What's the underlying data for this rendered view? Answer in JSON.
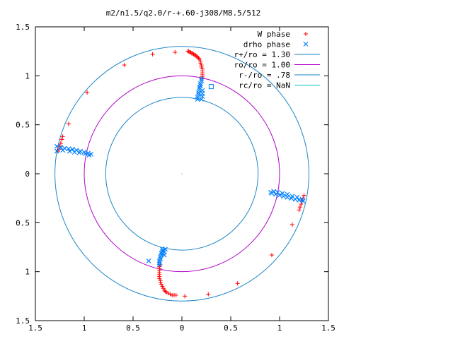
{
  "chart_data": {
    "type": "scatter",
    "title": "m2/n1.5/q2.0/r-+.60-j308/M8.5/512",
    "xlabel": "",
    "ylabel": "",
    "xlim": [
      -1.5,
      1.5
    ],
    "ylim": [
      -1.5,
      1.5
    ],
    "x_tick_values": [
      -1.5,
      -1,
      -0.5,
      0,
      0.5,
      1,
      1.5
    ],
    "x_tick_labels": [
      "1.5",
      "1",
      "0.5",
      "0",
      "0.5",
      "1",
      "1.5"
    ],
    "y_tick_values": [
      1.5,
      1,
      0.5,
      0,
      -0.5,
      -1,
      -1.5
    ],
    "y_tick_labels": [
      "1.5",
      "1",
      "0.5",
      "0",
      "0.5",
      "1",
      "1.5"
    ],
    "grid": false,
    "legend_position": "top-right",
    "series": [
      {
        "name": "W phase",
        "marker": "plus",
        "color": "#ff0000",
        "points": [
          [
            -1.27,
            0.23
          ],
          [
            -1.26,
            0.25
          ],
          [
            -1.25,
            0.28
          ],
          [
            -1.24,
            0.31
          ],
          [
            -1.23,
            0.35
          ],
          [
            -1.22,
            0.38
          ],
          [
            -1.16,
            0.51
          ],
          [
            -0.97,
            0.83
          ],
          [
            -0.59,
            1.11
          ],
          [
            -0.3,
            1.22
          ],
          [
            -0.07,
            1.24
          ],
          [
            0.06,
            1.25
          ],
          [
            0.07,
            1.25
          ],
          [
            0.08,
            1.24
          ],
          [
            0.09,
            1.24
          ],
          [
            0.1,
            1.23
          ],
          [
            0.11,
            1.23
          ],
          [
            0.12,
            1.22
          ],
          [
            0.13,
            1.21
          ],
          [
            0.14,
            1.21
          ],
          [
            0.15,
            1.2
          ],
          [
            0.16,
            1.19
          ],
          [
            0.17,
            1.18
          ],
          [
            0.18,
            1.17
          ],
          [
            0.19,
            1.15
          ],
          [
            0.19,
            1.13
          ],
          [
            0.2,
            1.11
          ],
          [
            0.2,
            1.09
          ],
          [
            0.21,
            1.07
          ],
          [
            0.21,
            1.05
          ],
          [
            0.21,
            1.03
          ],
          [
            0.21,
            1.01
          ],
          [
            0.21,
            0.99
          ],
          [
            0.21,
            0.97
          ],
          [
            1.25,
            -0.22
          ],
          [
            1.24,
            -0.25
          ],
          [
            1.23,
            -0.28
          ],
          [
            1.22,
            -0.31
          ],
          [
            1.21,
            -0.34
          ],
          [
            1.2,
            -0.37
          ],
          [
            1.13,
            -0.52
          ],
          [
            0.92,
            -0.83
          ],
          [
            0.57,
            -1.12
          ],
          [
            0.27,
            -1.23
          ],
          [
            0.03,
            -1.25
          ],
          [
            -0.06,
            -1.24
          ],
          [
            -0.08,
            -1.24
          ],
          [
            -0.1,
            -1.24
          ],
          [
            -0.12,
            -1.23
          ],
          [
            -0.14,
            -1.22
          ],
          [
            -0.16,
            -1.21
          ],
          [
            -0.17,
            -1.2
          ],
          [
            -0.18,
            -1.19
          ],
          [
            -0.19,
            -1.17
          ],
          [
            -0.2,
            -1.15
          ],
          [
            -0.21,
            -1.13
          ],
          [
            -0.22,
            -1.11
          ],
          [
            -0.22,
            -1.09
          ],
          [
            -0.23,
            -1.07
          ],
          [
            -0.23,
            -1.05
          ],
          [
            -0.23,
            -1.03
          ],
          [
            -0.23,
            -1.01
          ],
          [
            -0.23,
            -0.99
          ],
          [
            -0.23,
            -0.97
          ],
          [
            -0.23,
            -0.95
          ],
          [
            -0.22,
            -0.93
          ]
        ]
      },
      {
        "name": "drho phase",
        "marker": "cross",
        "color": "#0080ff",
        "points": [
          [
            -1.28,
            0.28
          ],
          [
            -1.24,
            0.27
          ],
          [
            -1.2,
            0.26
          ],
          [
            -1.16,
            0.255
          ],
          [
            -1.12,
            0.25
          ],
          [
            -1.08,
            0.24
          ],
          [
            -1.04,
            0.23
          ],
          [
            -1.0,
            0.22
          ],
          [
            -0.96,
            0.21
          ],
          [
            -0.93,
            0.2
          ],
          [
            -1.28,
            0.23
          ],
          [
            -1.22,
            0.24
          ],
          [
            -1.15,
            0.23
          ],
          [
            -1.1,
            0.22
          ],
          [
            -1.05,
            0.215
          ],
          [
            -0.99,
            0.205
          ],
          [
            -0.95,
            0.19
          ],
          [
            0.16,
            0.76
          ],
          [
            0.16,
            0.78
          ],
          [
            0.17,
            0.81
          ],
          [
            0.17,
            0.83
          ],
          [
            0.18,
            0.86
          ],
          [
            0.18,
            0.88
          ],
          [
            0.19,
            0.9
          ],
          [
            0.19,
            0.92
          ],
          [
            0.2,
            0.95
          ],
          [
            0.2,
            0.97
          ],
          [
            0.2,
            0.76
          ],
          [
            0.21,
            0.79
          ],
          [
            0.21,
            0.82
          ],
          [
            0.21,
            0.85
          ],
          [
            0.92,
            -0.2
          ],
          [
            0.96,
            -0.21
          ],
          [
            1.0,
            -0.22
          ],
          [
            1.04,
            -0.23
          ],
          [
            1.08,
            -0.24
          ],
          [
            1.12,
            -0.25
          ],
          [
            1.16,
            -0.26
          ],
          [
            1.2,
            -0.27
          ],
          [
            1.24,
            -0.28
          ],
          [
            0.94,
            -0.18
          ],
          [
            0.98,
            -0.19
          ],
          [
            1.03,
            -0.2
          ],
          [
            1.08,
            -0.21
          ],
          [
            1.13,
            -0.23
          ],
          [
            1.18,
            -0.24
          ],
          [
            1.23,
            -0.26
          ],
          [
            -0.2,
            -0.77
          ],
          [
            -0.2,
            -0.79
          ],
          [
            -0.21,
            -0.81
          ],
          [
            -0.21,
            -0.83
          ],
          [
            -0.22,
            -0.85
          ],
          [
            -0.22,
            -0.87
          ],
          [
            -0.23,
            -0.89
          ],
          [
            -0.23,
            -0.91
          ],
          [
            -0.23,
            -0.93
          ],
          [
            -0.17,
            -0.77
          ],
          [
            -0.18,
            -0.8
          ],
          [
            -0.18,
            -0.83
          ],
          [
            -0.34,
            -0.89
          ],
          [
            0.91,
            -0.19
          ]
        ]
      }
    ],
    "marker_square": {
      "color": "#0080ff",
      "point": [
        0.3,
        0.89
      ]
    },
    "circles": [
      {
        "name": "r+/ro = 1.30",
        "radius": 1.3,
        "color": "#1e86c8"
      },
      {
        "name": "ro/ro = 1.00",
        "radius": 1.0,
        "color": "#b000c8"
      },
      {
        "name": "r-/ro = .78",
        "radius": 0.78,
        "color": "#1e86c8"
      },
      {
        "name": "rc/ro = NaN",
        "radius": null,
        "color": "#00c0c0"
      }
    ]
  }
}
